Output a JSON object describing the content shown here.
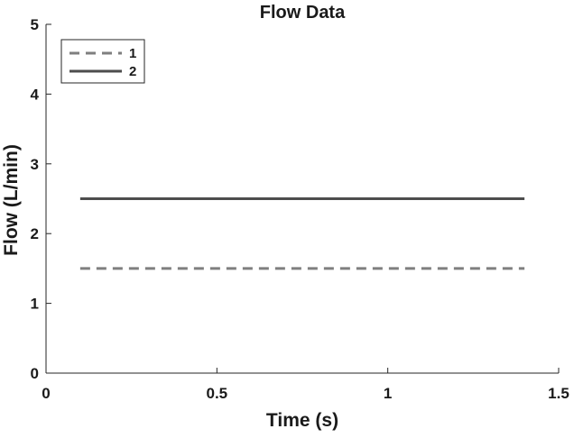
{
  "chart_data": {
    "type": "line",
    "title": "Flow Data",
    "xlabel": "Time (s)",
    "ylabel": "Flow (L/min)",
    "xlim": [
      0,
      1.5
    ],
    "ylim": [
      0,
      5
    ],
    "xticks": [
      0,
      0.5,
      1,
      1.5
    ],
    "xtick_labels": [
      "0",
      "0.5",
      "1",
      "1.5"
    ],
    "yticks": [
      0,
      1,
      2,
      3,
      4,
      5
    ],
    "ytick_labels": [
      "0",
      "1",
      "2",
      "3",
      "4",
      "5"
    ],
    "grid": false,
    "legend_position": "top-left",
    "series": [
      {
        "name": "1",
        "style": "dashed",
        "color": "#7f7f7f",
        "x": [
          0.1,
          1.4
        ],
        "y": [
          1.5,
          1.5
        ]
      },
      {
        "name": "2",
        "style": "solid",
        "color": "#4d4d4d",
        "x": [
          0.1,
          1.4
        ],
        "y": [
          2.5,
          2.5
        ]
      }
    ]
  }
}
